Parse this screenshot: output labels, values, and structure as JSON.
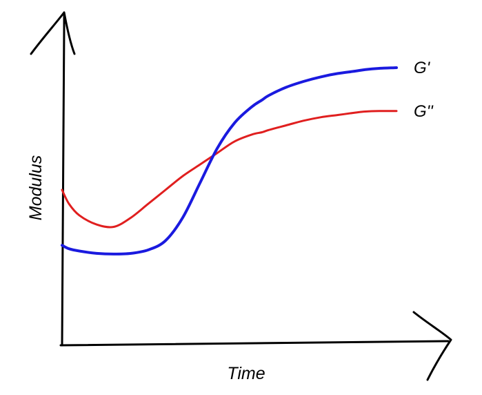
{
  "chart_data": {
    "type": "line",
    "title": "",
    "xlabel": "Time",
    "ylabel": "Modulus",
    "xlim": [
      0,
      100
    ],
    "ylim": [
      0,
      100
    ],
    "grid": false,
    "legend": "right, next to line ends",
    "x": [
      0,
      2,
      5,
      10,
      15,
      20,
      25,
      30,
      35,
      40,
      45,
      50,
      55,
      58,
      60,
      65,
      70,
      75,
      80,
      85,
      88,
      92,
      97
    ],
    "series": [
      {
        "name": "G''",
        "color": "#e01f1f",
        "values": [
          47,
          41,
          36,
          32,
          31,
          35,
          41,
          47,
          53,
          58,
          63,
          68,
          71,
          72,
          73,
          75,
          77,
          78.5,
          79.5,
          80.5,
          81,
          81.2,
          81.2
        ]
      },
      {
        "name": "G'",
        "color": "#1a1adf",
        "values": [
          23,
          21.5,
          20.5,
          19.5,
          19.2,
          19.5,
          21,
          25,
          35,
          50,
          65,
          76,
          83,
          86,
          88,
          91.5,
          94,
          96,
          97.5,
          98.5,
          99.2,
          99.7,
          100
        ]
      }
    ]
  }
}
